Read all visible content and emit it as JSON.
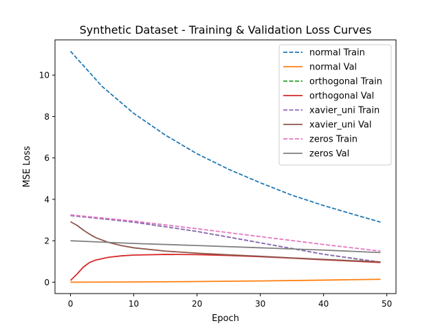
{
  "chart_data": {
    "type": "line",
    "title": "Synthetic Dataset - Training & Validation Loss Curves",
    "xlabel": "Epoch",
    "ylabel": "MSE Loss",
    "xlim": [
      -2.45,
      51.45
    ],
    "ylim": [
      -0.55,
      11.7
    ],
    "xticks": [
      0,
      10,
      20,
      30,
      40,
      50
    ],
    "yticks": [
      0,
      2,
      4,
      6,
      8,
      10
    ],
    "grid": false,
    "legend_position": "top-right",
    "series": [
      {
        "name": "normal Train",
        "color": "#1f77b4",
        "dash": "dashed",
        "x": [
          0,
          5,
          10,
          15,
          20,
          25,
          30,
          35,
          40,
          45,
          49
        ],
        "y": [
          11.15,
          9.45,
          8.15,
          7.1,
          6.2,
          5.45,
          4.8,
          4.2,
          3.7,
          3.25,
          2.9
        ]
      },
      {
        "name": "normal Val",
        "color": "#ff7f0e",
        "dash": "solid",
        "x": [
          0,
          10,
          20,
          30,
          40,
          49
        ],
        "y": [
          0.0,
          0.01,
          0.03,
          0.06,
          0.1,
          0.14
        ]
      },
      {
        "name": "orthogonal Train",
        "color": "#2ca02c",
        "dash": "dashed",
        "x": [
          0,
          10,
          20,
          30,
          40,
          49
        ],
        "y": [
          3.22,
          2.9,
          2.45,
          1.9,
          1.35,
          0.95
        ]
      },
      {
        "name": "orthogonal Val",
        "color": "#d62728",
        "dash": "solid",
        "x": [
          0,
          1,
          2,
          3,
          4,
          6,
          8,
          10,
          15,
          20,
          25,
          30,
          35,
          40,
          45,
          49
        ],
        "y": [
          0.08,
          0.38,
          0.72,
          0.95,
          1.07,
          1.2,
          1.27,
          1.31,
          1.34,
          1.33,
          1.29,
          1.23,
          1.16,
          1.08,
          1.01,
          0.95
        ]
      },
      {
        "name": "xavier_uni Train",
        "color": "#9467bd",
        "dash": "dashed",
        "x": [
          0,
          10,
          20,
          30,
          40,
          49
        ],
        "y": [
          3.22,
          2.9,
          2.45,
          1.9,
          1.35,
          0.97
        ]
      },
      {
        "name": "xavier_uni Val",
        "color": "#8c564b",
        "dash": "solid",
        "x": [
          0,
          1,
          2,
          3,
          4,
          6,
          8,
          10,
          15,
          20,
          25,
          30,
          35,
          40,
          45,
          49
        ],
        "y": [
          2.92,
          2.75,
          2.52,
          2.32,
          2.15,
          1.92,
          1.77,
          1.66,
          1.5,
          1.4,
          1.32,
          1.25,
          1.17,
          1.1,
          1.03,
          0.98
        ]
      },
      {
        "name": "zeros Train",
        "color": "#e377c2",
        "dash": "dashed",
        "x": [
          0,
          10,
          20,
          30,
          40,
          49
        ],
        "y": [
          3.25,
          2.95,
          2.58,
          2.2,
          1.82,
          1.5
        ]
      },
      {
        "name": "zeros Val",
        "color": "#7f7f7f",
        "dash": "solid",
        "x": [
          0,
          10,
          20,
          30,
          40,
          49
        ],
        "y": [
          2.0,
          1.87,
          1.77,
          1.66,
          1.55,
          1.43
        ]
      }
    ]
  }
}
